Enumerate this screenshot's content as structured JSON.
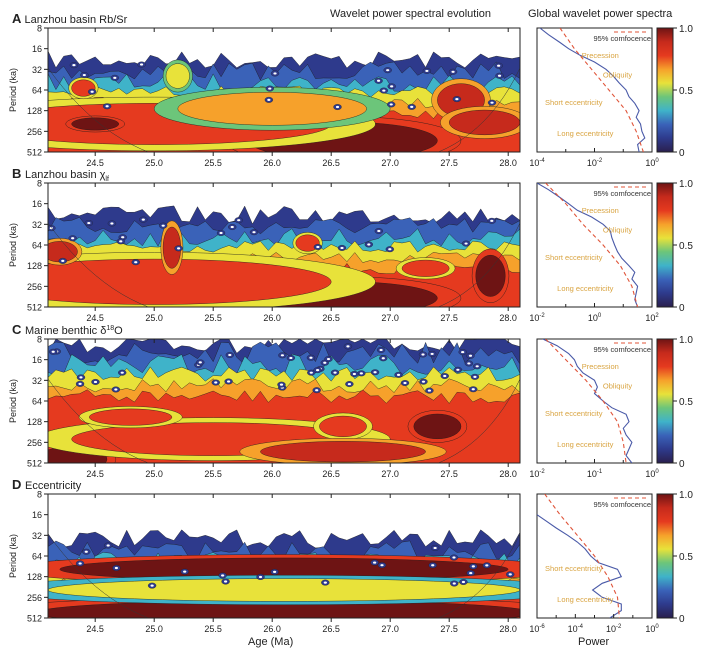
{
  "figure": {
    "header_left": "Wavelet power spectral evolution",
    "header_right": "Global wavelet power spectra",
    "xlabel": "Age (Ma)",
    "spectrum_xlabel": "Power"
  },
  "chart_data": {
    "type": "heatmap",
    "title": "Wavelet power spectral evolution and global wavelet power spectra",
    "xlabel": "Age (Ma)",
    "ylabel": "Period (ka)",
    "x_range": [
      24.1,
      28.1
    ],
    "x_ticks": [
      "24.5",
      "25.0",
      "25.5",
      "26.0",
      "26.5",
      "27.0",
      "27.5",
      "28.0"
    ],
    "x_tick_values": [
      24.5,
      25.0,
      25.5,
      26.0,
      26.5,
      27.0,
      27.5,
      28.0
    ],
    "y_scale": "log2",
    "y_ticks": [
      "8",
      "16",
      "32",
      "64",
      "128",
      "256",
      "512"
    ],
    "y_tick_values": [
      8,
      16,
      32,
      64,
      128,
      256,
      512
    ],
    "colorbar": {
      "range": [
        0,
        1
      ],
      "ticks": [
        "0",
        "0.5",
        "1.0"
      ],
      "colors": [
        "#2a1f4e",
        "#2e3a8c",
        "#3a62b8",
        "#3fb3c9",
        "#6cc57a",
        "#e8e23a",
        "#f6a12b",
        "#e53a1f",
        "#c62a1c",
        "#6e1414"
      ]
    },
    "annotations": {
      "confidence_label": "95% comfocence",
      "bands": [
        "Precession",
        "Obliquity",
        "Short eccentricity",
        "Long eccentricity"
      ]
    },
    "panels": [
      {
        "letter": "A",
        "title": "Lanzhou basin Rb/Sr",
        "title_sub": "",
        "title_sup": "",
        "spectrum_xscale": "log10",
        "spectrum_xrange_exp": [
          -4,
          0
        ],
        "spectrum_xticks": [
          "10",
          "10",
          "10"
        ],
        "spectrum_xtick_exps": [
          "-4",
          "-2",
          "0"
        ],
        "band_labels": [
          "Precession",
          "Obliquity",
          "Short eccentricity",
          "Long eccentricity"
        ],
        "global_power": {
          "periods": [
            8,
            10,
            13,
            16,
            20,
            25,
            32,
            40,
            50,
            64,
            80,
            100,
            128,
            160,
            200,
            256,
            320,
            400,
            512
          ],
          "power_log10": [
            -3.9,
            -3.6,
            -3.2,
            -2.9,
            -2.5,
            -2.0,
            -1.6,
            -1.35,
            -1.15,
            -0.9,
            -0.8,
            -0.6,
            -0.45,
            -0.55,
            -0.4,
            -0.35,
            -0.25,
            -0.5,
            -0.45
          ]
        },
        "confidence": {
          "periods": [
            8,
            16,
            32,
            64,
            128,
            256,
            512
          ],
          "power_log10": [
            -3.2,
            -2.7,
            -2.1,
            -1.5,
            -0.9,
            -0.55,
            -0.3
          ]
        },
        "blobs": [
          {
            "x": 26.6,
            "p": 350,
            "w": 1.6,
            "h": 0.9,
            "v": 0.95
          },
          {
            "x": 25.0,
            "p": 200,
            "w": 3.0,
            "h": 1.0,
            "v": 0.8
          },
          {
            "x": 24.5,
            "p": 200,
            "w": 0.4,
            "h": 0.3,
            "v": 0.95
          },
          {
            "x": 27.6,
            "p": 90,
            "w": 0.4,
            "h": 0.8,
            "v": 0.85
          },
          {
            "x": 27.8,
            "p": 190,
            "w": 0.6,
            "h": 0.6,
            "v": 0.9
          },
          {
            "x": 24.4,
            "p": 60,
            "w": 0.2,
            "h": 0.4,
            "v": 0.75
          },
          {
            "x": 26.0,
            "p": 120,
            "w": 1.6,
            "h": 0.8,
            "v": 0.65
          },
          {
            "x": 25.2,
            "p": 40,
            "w": 0.2,
            "h": 0.6,
            "v": 0.6
          }
        ]
      },
      {
        "letter": "B",
        "title": "Lanzhou basin ",
        "title_sub": "lf",
        "title_sup": "",
        "title_symbol": "χ",
        "spectrum_xscale": "log10",
        "spectrum_xrange_exp": [
          -2,
          2
        ],
        "spectrum_xticks": [
          "10",
          "10",
          "10"
        ],
        "spectrum_xtick_exps": [
          "-2",
          "0",
          "2"
        ],
        "band_labels": [
          "Precession",
          "Obliquity",
          "Short eccentricity",
          "Long eccentricity"
        ],
        "global_power": {
          "periods": [
            8,
            10,
            13,
            16,
            20,
            25,
            32,
            40,
            50,
            64,
            80,
            100,
            128,
            160,
            200,
            256,
            320,
            400,
            512
          ],
          "power_log10": [
            -2.0,
            -1.6,
            -1.2,
            -0.9,
            -0.6,
            -0.1,
            0.3,
            0.55,
            0.6,
            0.7,
            0.8,
            0.95,
            1.2,
            1.4,
            1.3,
            1.5,
            1.45,
            1.4,
            1.5
          ]
        },
        "confidence": {
          "periods": [
            8,
            16,
            32,
            64,
            128,
            256,
            512
          ],
          "power_log10": [
            -1.7,
            -1.0,
            -0.4,
            0.3,
            0.9,
            1.3,
            1.5
          ]
        },
        "blobs": [
          {
            "x": 26.6,
            "p": 380,
            "w": 1.6,
            "h": 0.8,
            "v": 0.95
          },
          {
            "x": 25.0,
            "p": 220,
            "w": 3.0,
            "h": 1.1,
            "v": 0.8
          },
          {
            "x": 25.15,
            "p": 70,
            "w": 0.15,
            "h": 1.0,
            "v": 0.85
          },
          {
            "x": 27.85,
            "p": 180,
            "w": 0.25,
            "h": 1.0,
            "v": 0.95
          },
          {
            "x": 26.3,
            "p": 60,
            "w": 0.2,
            "h": 0.4,
            "v": 0.75
          },
          {
            "x": 27.3,
            "p": 140,
            "w": 0.4,
            "h": 0.4,
            "v": 0.75
          },
          {
            "x": 24.2,
            "p": 80,
            "w": 0.3,
            "h": 0.5,
            "v": 0.85
          }
        ]
      },
      {
        "letter": "C",
        "title": "Marine benthic δ",
        "title_sub": "",
        "title_sup": "18",
        "title_after": "O",
        "spectrum_xscale": "log10",
        "spectrum_xrange_exp": [
          -2,
          0
        ],
        "spectrum_xticks": [
          "10",
          "10",
          "10"
        ],
        "spectrum_xtick_exps": [
          "-2",
          "-1",
          "0"
        ],
        "band_labels": [
          "Precession",
          "Obliquity",
          "Short eccentricity",
          "Long eccentricity"
        ],
        "global_power": {
          "periods": [
            8,
            10,
            13,
            16,
            20,
            25,
            32,
            40,
            50,
            64,
            80,
            100,
            128,
            160,
            200,
            256,
            320,
            400,
            512
          ],
          "power_log10": [
            -1.9,
            -1.65,
            -1.45,
            -1.35,
            -1.3,
            -1.2,
            -1.0,
            -0.95,
            -1.0,
            -0.85,
            -0.7,
            -0.45,
            -0.4,
            -0.5,
            -0.45,
            -0.35,
            -0.4,
            -0.45,
            -0.35
          ]
        },
        "confidence": {
          "periods": [
            8,
            16,
            32,
            64,
            128,
            256,
            512
          ],
          "power_log10": [
            -1.85,
            -1.5,
            -1.15,
            -0.85,
            -0.6,
            -0.5,
            -0.45
          ]
        },
        "blobs": [
          {
            "x": 24.3,
            "p": 450,
            "w": 0.6,
            "h": 0.6,
            "v": 0.95
          },
          {
            "x": 27.4,
            "p": 150,
            "w": 0.4,
            "h": 0.6,
            "v": 0.95
          },
          {
            "x": 25.5,
            "p": 230,
            "w": 2.4,
            "h": 0.8,
            "v": 0.8
          },
          {
            "x": 24.8,
            "p": 110,
            "w": 0.7,
            "h": 0.4,
            "v": 0.8
          },
          {
            "x": 26.6,
            "p": 150,
            "w": 0.4,
            "h": 0.5,
            "v": 0.8
          },
          {
            "x": 26.6,
            "p": 350,
            "w": 1.4,
            "h": 0.5,
            "v": 0.85
          }
        ]
      },
      {
        "letter": "D",
        "title": "Eccentricity",
        "title_sub": "",
        "title_sup": "",
        "spectrum_xscale": "log10",
        "spectrum_xrange_exp": [
          -6,
          0
        ],
        "spectrum_xticks": [
          "10",
          "10",
          "10",
          "10"
        ],
        "spectrum_xtick_exps": [
          "-6",
          "-4",
          "-2",
          "0"
        ],
        "band_labels": [
          "Short eccentricity",
          "Long eccentricity"
        ],
        "global_power": {
          "periods": [
            16,
            20,
            25,
            32,
            40,
            50,
            64,
            80,
            100,
            128,
            160,
            200,
            256,
            320,
            400,
            512
          ],
          "power_log10": [
            -6.0,
            -5.5,
            -5.0,
            -4.4,
            -3.9,
            -3.5,
            -3.2,
            -2.8,
            -1.8,
            -1.6,
            -2.6,
            -3.1,
            -2.6,
            -1.6,
            -1.6,
            -2.2
          ]
        },
        "confidence": {
          "periods": [
            8,
            16,
            32,
            64,
            128,
            256,
            512
          ],
          "power_log10": [
            -5.6,
            -4.8,
            -3.9,
            -3.0,
            -2.3,
            -1.8,
            -1.7
          ]
        },
        "blobs": [
          {
            "x": 26.1,
            "p": 100,
            "w": 3.8,
            "h": 0.55,
            "v": 0.98
          },
          {
            "x": 26.1,
            "p": 430,
            "w": 4.2,
            "h": 0.6,
            "v": 0.98
          },
          {
            "x": 26.1,
            "p": 200,
            "w": 4.0,
            "h": 0.55,
            "v": 0.55
          }
        ]
      }
    ]
  }
}
